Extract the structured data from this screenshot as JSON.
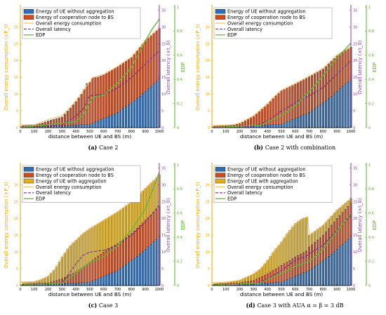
{
  "colors": {
    "ue": "#2f6db5",
    "coop": "#cf4b1e",
    "aggr": "#e3b01d",
    "energy_line": "#f2c16a",
    "latency": "#7a2a8a",
    "edp": "#66b53a",
    "energy_axis": "#e6a700",
    "latency_axis": "#8b3fa3",
    "edp_axis": "#5aae2d",
    "bar_edge": "#111111"
  },
  "chart_data": [
    {
      "type": "bar",
      "caption_tag": "(a)",
      "caption_text": "Case 2",
      "xlabel": "distance between UE and BS (m)",
      "ylabel": "Overall energy consumption (×P_t)",
      "ylabel2": "Overall latency (×t_0)",
      "ylabel3": "EDP",
      "xlim": [
        0,
        1000
      ],
      "ylim": [
        0,
        36
      ],
      "ylim2": [
        0,
        36
      ],
      "ylim3": [
        0,
        1
      ],
      "x_ticks": [
        0,
        100,
        200,
        300,
        400,
        500,
        600,
        700,
        800,
        900,
        1000
      ],
      "y_ticks": [
        0,
        5,
        10,
        15,
        20,
        25,
        30
      ],
      "y2_ticks": [
        0,
        5,
        10,
        15,
        20,
        25,
        30,
        35
      ],
      "y3_ticks": [
        0,
        0.2,
        0.4,
        0.6,
        0.8,
        1
      ],
      "legend": [
        {
          "label": "Energy of UE without aggregation",
          "kind": "bar",
          "key": "ue"
        },
        {
          "label": "Energy of cooperation node to BS",
          "kind": "bar",
          "key": "coop"
        },
        {
          "label": "Overall energy consumption",
          "kind": "line",
          "key": "energy_line"
        },
        {
          "label": "Overall latency",
          "kind": "dash",
          "key": "latency"
        },
        {
          "label": "EDP",
          "kind": "line",
          "key": "edp"
        }
      ],
      "keypoints": {
        "ue": [
          [
            0,
            0.2
          ],
          [
            500,
            1
          ],
          [
            1000,
            14.5
          ]
        ],
        "coop": [
          [
            0,
            0.6
          ],
          [
            100,
            0.7
          ],
          [
            150,
            1.3
          ],
          [
            200,
            2.0
          ],
          [
            300,
            3.2
          ],
          [
            350,
            5.4
          ],
          [
            400,
            7.8
          ],
          [
            450,
            10.6
          ],
          [
            480,
            13.2
          ],
          [
            500,
            13.6
          ],
          [
            510,
            14.8
          ],
          [
            560,
            15.1
          ],
          [
            600,
            15.8
          ],
          [
            700,
            18.2
          ],
          [
            800,
            21.0
          ],
          [
            900,
            26.0
          ],
          [
            1000,
            29.7
          ]
        ],
        "energy": [
          [
            0,
            0.8
          ],
          [
            100,
            0.9
          ],
          [
            150,
            1.6
          ],
          [
            200,
            2.4
          ],
          [
            300,
            3.6
          ],
          [
            350,
            5.7
          ],
          [
            400,
            8.1
          ],
          [
            450,
            10.9
          ],
          [
            500,
            13.8
          ],
          [
            520,
            15.0
          ],
          [
            600,
            15.9
          ],
          [
            700,
            18.3
          ],
          [
            800,
            21.1
          ],
          [
            900,
            26.1
          ],
          [
            1000,
            29.8
          ]
        ],
        "latency": [
          [
            0,
            0.2
          ],
          [
            300,
            0.8
          ],
          [
            400,
            3.5
          ],
          [
            460,
            6.0
          ],
          [
            480,
            8.5
          ],
          [
            500,
            9.5
          ],
          [
            600,
            10.0
          ],
          [
            700,
            11.8
          ],
          [
            800,
            15.0
          ],
          [
            900,
            19.0
          ],
          [
            1000,
            23.0
          ]
        ],
        "edp": [
          [
            0,
            0
          ],
          [
            400,
            0.05
          ],
          [
            450,
            0.1
          ],
          [
            480,
            0.17
          ],
          [
            520,
            0.25
          ],
          [
            600,
            0.27
          ],
          [
            700,
            0.37
          ],
          [
            800,
            0.5
          ],
          [
            900,
            0.72
          ],
          [
            950,
            0.82
          ],
          [
            1000,
            0.9
          ]
        ]
      }
    },
    {
      "type": "bar",
      "caption_tag": "(b)",
      "caption_text": "Case 2 with combination",
      "xlabel": "distance between UE and BS (m)",
      "ylabel": "Overall energy consumption (×P_t)",
      "ylabel2": "Overall latency (×t_0)",
      "ylabel3": "EDP",
      "xlim": [
        0,
        1000
      ],
      "ylim": [
        0,
        36
      ],
      "ylim2": [
        0,
        36
      ],
      "ylim3": [
        0,
        1
      ],
      "x_ticks": [
        0,
        100,
        200,
        300,
        400,
        500,
        600,
        700,
        800,
        900,
        1000
      ],
      "y_ticks": [
        0,
        5,
        10,
        15,
        20,
        25,
        30
      ],
      "y2_ticks": [
        0,
        5,
        10,
        15,
        20,
        25,
        30,
        35
      ],
      "y3_ticks": [
        0,
        0.2,
        0.4,
        0.6,
        0.8,
        1
      ],
      "legend": [
        {
          "label": "Energy of UE without aggregation",
          "kind": "bar",
          "key": "ue"
        },
        {
          "label": "Energy of cooperation node to BS",
          "kind": "bar",
          "key": "coop"
        },
        {
          "label": "Overall energy consumption",
          "kind": "line",
          "key": "energy_line"
        },
        {
          "label": "Overall latency",
          "kind": "dash",
          "key": "latency"
        },
        {
          "label": "EDP",
          "kind": "line",
          "key": "edp"
        }
      ],
      "keypoints": {
        "ue": [
          [
            0,
            0.2
          ],
          [
            500,
            1
          ],
          [
            1000,
            14.5
          ]
        ],
        "coop": [
          [
            0,
            0.4
          ],
          [
            150,
            0.7
          ],
          [
            200,
            1.2
          ],
          [
            300,
            3.4
          ],
          [
            400,
            7.0
          ],
          [
            450,
            9.2
          ],
          [
            500,
            11.0
          ],
          [
            600,
            13.0
          ],
          [
            700,
            15.2
          ],
          [
            800,
            17.5
          ],
          [
            900,
            21.5
          ],
          [
            1000,
            24.0
          ]
        ],
        "energy": [
          [
            0,
            0.6
          ],
          [
            150,
            0.9
          ],
          [
            200,
            1.4
          ],
          [
            300,
            3.6
          ],
          [
            400,
            7.2
          ],
          [
            450,
            9.4
          ],
          [
            500,
            11.2
          ],
          [
            600,
            13.2
          ],
          [
            700,
            15.4
          ],
          [
            800,
            17.7
          ],
          [
            900,
            21.7
          ],
          [
            1000,
            24.2
          ]
        ],
        "latency": [
          [
            0,
            0.1
          ],
          [
            300,
            0.4
          ],
          [
            400,
            2.0
          ],
          [
            500,
            5.0
          ],
          [
            600,
            7.5
          ],
          [
            700,
            9.5
          ],
          [
            800,
            12.0
          ],
          [
            900,
            16.0
          ],
          [
            1000,
            20.0
          ]
        ],
        "edp": [
          [
            0,
            0
          ],
          [
            350,
            0.02
          ],
          [
            400,
            0.05
          ],
          [
            500,
            0.1
          ],
          [
            600,
            0.18
          ],
          [
            700,
            0.3
          ],
          [
            800,
            0.43
          ],
          [
            900,
            0.58
          ],
          [
            1000,
            0.7
          ]
        ]
      }
    },
    {
      "type": "bar",
      "caption_tag": "(c)",
      "caption_text": "Case 3",
      "xlabel": "distance between UE and BS (m)",
      "ylabel": "Overall energy consumption (×P_t)",
      "ylabel2": "Overall latency (×t_0)",
      "ylabel3": "EDP",
      "xlim": [
        0,
        1000
      ],
      "ylim": [
        0,
        36
      ],
      "ylim2": [
        0,
        36
      ],
      "ylim3": [
        0,
        1
      ],
      "x_ticks": [
        0,
        100,
        200,
        300,
        400,
        500,
        600,
        700,
        800,
        900,
        1000
      ],
      "y_ticks": [
        0,
        5,
        10,
        15,
        20,
        25,
        30
      ],
      "y2_ticks": [
        0,
        5,
        10,
        15,
        20,
        25,
        30,
        35
      ],
      "y3_ticks": [
        0,
        0.2,
        0.4,
        0.6,
        0.8,
        1
      ],
      "legend": [
        {
          "label": "Energy of UE without aggregation",
          "kind": "bar",
          "key": "ue"
        },
        {
          "label": "Energy of cooperation node to BS",
          "kind": "bar",
          "key": "coop"
        },
        {
          "label": "Energy of UE with aggregation",
          "kind": "bar",
          "key": "aggr"
        },
        {
          "label": "Overall energy consumption",
          "kind": "line",
          "key": "energy_line"
        },
        {
          "label": "Overall latency",
          "kind": "dash",
          "key": "latency"
        },
        {
          "label": "EDP",
          "kind": "line",
          "key": "edp"
        }
      ],
      "keypoints": {
        "ue": [
          [
            0,
            0.2
          ],
          [
            500,
            1
          ],
          [
            1000,
            14.5
          ]
        ],
        "coop": [
          [
            0,
            0.3
          ],
          [
            200,
            0.8
          ],
          [
            300,
            2.0
          ],
          [
            400,
            4.0
          ],
          [
            500,
            7.0
          ],
          [
            600,
            10.0
          ],
          [
            700,
            12.5
          ],
          [
            800,
            15.5
          ],
          [
            900,
            19.5
          ],
          [
            1000,
            23.5
          ]
        ],
        "energy": [
          [
            0,
            1.0
          ],
          [
            100,
            1.2
          ],
          [
            150,
            1.8
          ],
          [
            200,
            2.8
          ],
          [
            250,
            5.0
          ],
          [
            300,
            8.5
          ],
          [
            350,
            11.5
          ],
          [
            400,
            13.5
          ],
          [
            450,
            15.5
          ],
          [
            500,
            17.0
          ],
          [
            600,
            19.5
          ],
          [
            700,
            22.0
          ],
          [
            800,
            25.0
          ],
          [
            900,
            29.0
          ],
          [
            1000,
            33.0
          ]
        ],
        "latency": [
          [
            0,
            0.1
          ],
          [
            300,
            0.8
          ],
          [
            350,
            3.5
          ],
          [
            400,
            6.5
          ],
          [
            450,
            9.0
          ],
          [
            500,
            10.0
          ],
          [
            600,
            10.5
          ],
          [
            700,
            12.0
          ],
          [
            800,
            15.0
          ],
          [
            900,
            19.0
          ],
          [
            1000,
            24.0
          ]
        ],
        "edp": [
          [
            0,
            0
          ],
          [
            300,
            0.02
          ],
          [
            350,
            0.06
          ],
          [
            400,
            0.1
          ],
          [
            450,
            0.15
          ],
          [
            500,
            0.19
          ],
          [
            600,
            0.24
          ],
          [
            700,
            0.33
          ],
          [
            800,
            0.46
          ],
          [
            900,
            0.64
          ],
          [
            1000,
            0.94
          ]
        ]
      }
    },
    {
      "type": "bar",
      "caption_tag": "(d)",
      "caption_text": "Case 3 with AUA α = β = 3 dB",
      "xlabel": "distance between UE and BS (m)",
      "ylabel": "Overall energy consumption (×P_t)",
      "ylabel2": "Overall latency (×t_0)",
      "ylabel3": "EDP",
      "xlim": [
        0,
        1000
      ],
      "ylim": [
        0,
        36
      ],
      "ylim2": [
        0,
        36
      ],
      "ylim3": [
        0,
        1
      ],
      "x_ticks": [
        0,
        100,
        200,
        300,
        400,
        500,
        600,
        700,
        800,
        900,
        1000
      ],
      "y_ticks": [
        0,
        5,
        10,
        15,
        20,
        25,
        30
      ],
      "y2_ticks": [
        0,
        5,
        10,
        15,
        20,
        25,
        30,
        35
      ],
      "y3_ticks": [
        0,
        0.2,
        0.4,
        0.6,
        0.8,
        1
      ],
      "legend": [
        {
          "label": "Energy of UE without aggregation",
          "kind": "bar",
          "key": "ue"
        },
        {
          "label": "Energy of cooperation node to BS",
          "kind": "bar",
          "key": "coop"
        },
        {
          "label": "Energy of UE with aggregation",
          "kind": "bar",
          "key": "aggr"
        },
        {
          "label": "Overall energy consumption",
          "kind": "line",
          "key": "energy_line"
        },
        {
          "label": "Overall latency",
          "kind": "dash",
          "key": "latency"
        },
        {
          "label": "EDP",
          "kind": "line",
          "key": "edp"
        }
      ],
      "keypoints": {
        "ue": [
          [
            0,
            0.2
          ],
          [
            500,
            1
          ],
          [
            1000,
            14.5
          ]
        ],
        "coop": [
          [
            0,
            0.3
          ],
          [
            200,
            0.8
          ],
          [
            300,
            1.5
          ],
          [
            400,
            3.5
          ],
          [
            500,
            6.0
          ],
          [
            600,
            8.5
          ],
          [
            690,
            10.5
          ],
          [
            700,
            11.5
          ],
          [
            800,
            15.0
          ],
          [
            900,
            20.0
          ],
          [
            1000,
            24.5
          ]
        ],
        "energy": [
          [
            0,
            0.8
          ],
          [
            100,
            1.0
          ],
          [
            200,
            1.6
          ],
          [
            300,
            3.5
          ],
          [
            350,
            5.0
          ],
          [
            400,
            7.5
          ],
          [
            450,
            10.5
          ],
          [
            500,
            13.0
          ],
          [
            550,
            16.0
          ],
          [
            600,
            18.5
          ],
          [
            650,
            20.0
          ],
          [
            690,
            20.5
          ],
          [
            700,
            15.0
          ],
          [
            800,
            18.0
          ],
          [
            900,
            22.5
          ],
          [
            1000,
            26.0
          ]
        ],
        "latency": [
          [
            0,
            0.1
          ],
          [
            300,
            0.3
          ],
          [
            400,
            2.0
          ],
          [
            500,
            4.5
          ],
          [
            600,
            7.5
          ],
          [
            690,
            9.0
          ],
          [
            700,
            9.5
          ],
          [
            800,
            12.0
          ],
          [
            900,
            16.5
          ],
          [
            1000,
            21.0
          ]
        ],
        "edp": [
          [
            0,
            0
          ],
          [
            350,
            0.02
          ],
          [
            400,
            0.05
          ],
          [
            500,
            0.1
          ],
          [
            600,
            0.16
          ],
          [
            700,
            0.2
          ],
          [
            800,
            0.3
          ],
          [
            900,
            0.45
          ],
          [
            1000,
            0.6
          ]
        ]
      }
    }
  ]
}
